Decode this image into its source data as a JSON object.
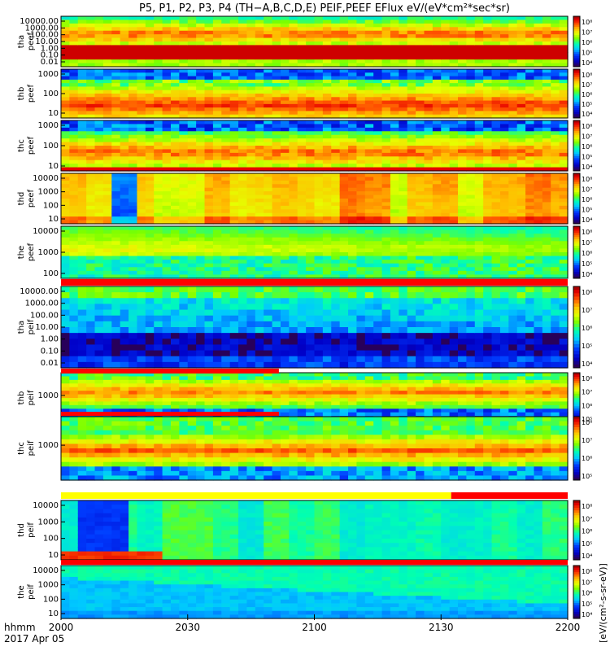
{
  "title": "P5, P1, P2, P3, P4 (TH−A,B,C,D,E) PEIF,PEEF EFlux eV/(eV*cm²*sec*sr)",
  "colorbar_label": "[eV/(cm²-s-sr-eV)] (eV/(cm²-s-sr-eV))",
  "colorbar_label_short": "[eV/(cm²-s-sr-eV)]",
  "footer": {
    "time_label": "hhmm",
    "date_label": "2017 Apr 05"
  },
  "chart_data": {
    "type": "heatmap",
    "title": "P5, P1, P2, P3, P4 (TH−A,B,C,D,E) PEIF,PEEF EFlux eV/(eV*cm²*sec*sr)",
    "x_ticks": [
      "2000",
      "2030",
      "2100",
      "2130",
      "2200"
    ],
    "x_range": [
      "20:00",
      "22:00"
    ],
    "colorbar_ticks": [
      "10⁸",
      "10⁷",
      "10⁶",
      "10⁵",
      "10⁴"
    ],
    "colorbar_ticks_5": [
      "10⁸",
      "10⁷",
      "10⁶",
      "10⁵"
    ],
    "colorscale": [
      "#ffffff",
      "#ff0000",
      "#ff8000",
      "#ffff00",
      "#80ff00",
      "#00ff80",
      "#00ffff",
      "#0080ff",
      "#0000ff",
      "#4000a0",
      "#000000"
    ],
    "y_scale": "log",
    "panels": [
      {
        "name": "tha-peef",
        "label1": "tha",
        "label2": "peef",
        "y_ticks": [
          "10000.00",
          "1000.00",
          "100.00",
          "10.00",
          "1.00",
          "0.10",
          "0.01"
        ],
        "pattern": "tha_peef",
        "cb_ticks": "4"
      },
      {
        "name": "thb-peef",
        "label1": "thb",
        "label2": "peef",
        "y_ticks": [
          "1000",
          "100",
          "10"
        ],
        "pattern": "thb_peef",
        "cb_ticks": "4"
      },
      {
        "name": "thc-peef",
        "label1": "thc",
        "label2": "peef",
        "y_ticks": [
          "1000",
          "100",
          "10"
        ],
        "pattern": "thc_peef",
        "cb_ticks": "4"
      },
      {
        "name": "thd-peef",
        "label1": "thd",
        "label2": "peef",
        "y_ticks": [
          "10000",
          "1000",
          "100",
          "10"
        ],
        "pattern": "thd_peef",
        "cb_ticks": "4"
      },
      {
        "name": "the-peef",
        "label1": "the",
        "label2": "peef",
        "y_ticks": [
          "10000",
          "1000",
          "100"
        ],
        "pattern": "the_peef",
        "cb_ticks": "4"
      },
      {
        "name": "tha-peif",
        "label1": "tha",
        "label2": "peif",
        "y_ticks": [
          "10000.00",
          "1000.00",
          "100.00",
          "10.00",
          "1.00",
          "0.10",
          "0.01"
        ],
        "pattern": "tha_peif",
        "cb_ticks": "4"
      },
      {
        "name": "thb-peif",
        "label1": "thb",
        "label2": "peif",
        "y_ticks": [
          "1000"
        ],
        "pattern": "thb_peif",
        "cb_ticks": "5"
      },
      {
        "name": "thc-peif",
        "label1": "thc",
        "label2": "peif",
        "y_ticks": [
          "1000"
        ],
        "pattern": "thc_peif",
        "cb_ticks": "5"
      },
      {
        "name": "thd-peif",
        "label1": "thd",
        "label2": "peif",
        "y_ticks": [
          "10000",
          "1000",
          "100",
          "10"
        ],
        "pattern": "thd_peif",
        "cb_ticks": "4"
      },
      {
        "name": "the-peif",
        "label1": "the",
        "label2": "peif",
        "y_ticks": [
          "10000",
          "1000",
          "100",
          "10"
        ],
        "pattern": "the_peif",
        "cb_ticks": "4"
      }
    ]
  }
}
